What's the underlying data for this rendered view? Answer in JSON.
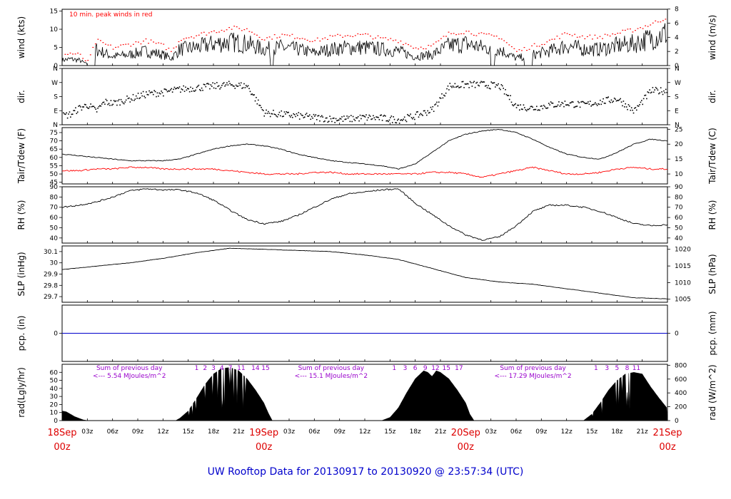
{
  "title": "UW Rooftop Data for 20130917  to  20130920 @ 23:57:34  (UTC)",
  "colors": {
    "frame": "#000000",
    "red": "#ff0000",
    "blue": "#0000cc",
    "purple": "#9900cc",
    "date": "#dd0000"
  },
  "x_axis": {
    "hours_total": 72,
    "hour_ticks": [
      "03z",
      "06z",
      "09z",
      "12z",
      "15z",
      "18z",
      "21z",
      "03z",
      "06z",
      "09z",
      "12z",
      "15z",
      "18z",
      "21z",
      "03z",
      "06z",
      "09z",
      "12z",
      "15z",
      "18z",
      "21z"
    ],
    "hour_tick_hours": [
      3,
      6,
      9,
      12,
      15,
      18,
      21,
      27,
      30,
      33,
      36,
      39,
      42,
      45,
      51,
      54,
      57,
      60,
      63,
      66,
      69
    ],
    "dates": [
      {
        "label": "18Sep",
        "sub": "00z",
        "hour": 0
      },
      {
        "label": "19Sep",
        "sub": "00z",
        "hour": 24
      },
      {
        "label": "20Sep",
        "sub": "00z",
        "hour": 48
      },
      {
        "label": "21Sep",
        "sub": "00z",
        "hour": 72
      }
    ]
  },
  "chart_data": [
    {
      "type": "line",
      "id": "wind",
      "ylabel": "wind (kts)",
      "ylabel_right": "wind (m/s)",
      "ylim": [
        0,
        15.5
      ],
      "yticks": [
        0,
        5,
        10,
        15
      ],
      "right_ticks": [
        "0",
        "2",
        "4",
        "6",
        "8"
      ],
      "right_tick_at": [
        0,
        3.89,
        7.78,
        11.66,
        15.55
      ],
      "annotation": "10 min. peak winds in red",
      "series": [
        {
          "x": [
            0,
            1,
            2,
            3,
            4,
            5,
            6,
            8,
            10,
            12,
            13,
            14,
            16,
            18,
            20,
            22,
            24,
            26,
            28,
            30,
            32,
            34,
            36,
            38,
            40,
            42,
            44,
            46,
            48,
            50,
            52,
            54,
            56,
            58,
            60,
            62,
            64,
            66,
            68,
            70,
            72
          ],
          "y": [
            1.5,
            1.8,
            1.5,
            0.4,
            4.5,
            3.5,
            2.5,
            3,
            4,
            3,
            2,
            4.5,
            5,
            6,
            6.5,
            6,
            4.5,
            5,
            4.5,
            3.5,
            4.5,
            5,
            5,
            4.5,
            4,
            2.5,
            3,
            5.5,
            6,
            5,
            4.5,
            2,
            3,
            4,
            5.5,
            4.5,
            4.5,
            5.5,
            6,
            7.5,
            9
          ]
        },
        {
          "x": [
            0,
            1,
            2,
            3,
            4,
            5,
            6,
            8,
            10,
            12,
            13,
            14,
            16,
            18,
            20,
            22,
            24,
            26,
            28,
            30,
            32,
            34,
            36,
            38,
            40,
            42,
            44,
            46,
            48,
            50,
            52,
            54,
            56,
            58,
            60,
            62,
            64,
            66,
            68,
            70,
            72
          ],
          "y": [
            3,
            3.5,
            3,
            1,
            7,
            6,
            5,
            6,
            7,
            5.5,
            4,
            7.5,
            8.5,
            9.5,
            10.5,
            10,
            7.5,
            8.5,
            8,
            7,
            8,
            8.5,
            8.5,
            7.5,
            7,
            5,
            5.5,
            9,
            9.5,
            8.5,
            8,
            4,
            5.5,
            7,
            9,
            8,
            8,
            9,
            10,
            11.5,
            13.5
          ]
        }
      ]
    },
    {
      "type": "scatter",
      "id": "direction",
      "ylabel": "dir.",
      "ylabel_right": "dir.",
      "ylim": [
        0,
        360
      ],
      "yticks": [
        "N",
        "E",
        "S",
        "W",
        "N"
      ],
      "ytick_values": [
        0,
        90,
        180,
        270,
        360
      ],
      "series": [
        {
          "x": [
            0,
            1,
            2,
            3,
            4,
            5,
            6,
            8,
            10,
            12,
            14,
            16,
            18,
            20,
            22,
            24,
            26,
            28,
            30,
            32,
            34,
            36,
            38,
            40,
            42,
            44,
            46,
            48,
            50,
            52,
            54,
            56,
            58,
            60,
            62,
            64,
            66,
            68,
            70,
            72
          ],
          "y": [
            60,
            70,
            110,
            130,
            90,
            150,
            140,
            170,
            200,
            210,
            230,
            240,
            250,
            260,
            250,
            80,
            70,
            60,
            50,
            40,
            40,
            50,
            45,
            35,
            60,
            100,
            250,
            260,
            260,
            250,
            120,
            110,
            130,
            140,
            130,
            150,
            170,
            90,
            220,
            220
          ]
        }
      ]
    },
    {
      "type": "line",
      "id": "temperature",
      "ylabel": "Tair/Tdew (F)",
      "ylabel_right": "Tair/Tdew (C)",
      "ylim": [
        44,
        78
      ],
      "yticks": [
        45,
        50,
        55,
        60,
        65,
        70,
        75
      ],
      "right_ticks": [
        "10",
        "15",
        "20",
        "25"
      ],
      "right_tick_at": [
        50,
        59,
        68,
        77
      ],
      "series": [
        {
          "x": [
            0,
            2,
            4,
            6,
            8,
            10,
            12,
            14,
            16,
            18,
            20,
            22,
            24,
            26,
            28,
            30,
            32,
            34,
            36,
            38,
            40,
            42,
            44,
            46,
            48,
            50,
            52,
            54,
            56,
            58,
            60,
            62,
            64,
            66,
            68,
            70,
            72
          ],
          "y": [
            62,
            61,
            60,
            59,
            58,
            58,
            58,
            59,
            62,
            65,
            67,
            68,
            67,
            65,
            62,
            60,
            58,
            57,
            56,
            55,
            53,
            56,
            63,
            70,
            74,
            76,
            77,
            75,
            71,
            66,
            62,
            60,
            59,
            63,
            68,
            71,
            70
          ]
        },
        {
          "x": [
            0,
            2,
            4,
            6,
            8,
            10,
            12,
            14,
            16,
            18,
            20,
            22,
            24,
            26,
            28,
            30,
            32,
            34,
            36,
            38,
            40,
            42,
            44,
            46,
            48,
            50,
            52,
            54,
            56,
            58,
            60,
            62,
            64,
            66,
            68,
            70,
            72
          ],
          "y": [
            52,
            52,
            53,
            53,
            54,
            54,
            53,
            53,
            53,
            53,
            52,
            51,
            50,
            50,
            50,
            51,
            51,
            50,
            50,
            50,
            50,
            50,
            51,
            51,
            50,
            48,
            50,
            52,
            54,
            52,
            50,
            50,
            51,
            53,
            54,
            53,
            53
          ]
        }
      ]
    },
    {
      "type": "line",
      "id": "rh",
      "ylabel": "RH (%)",
      "ylabel_right": "RH (%)",
      "ylim": [
        35,
        90
      ],
      "yticks": [
        40,
        50,
        60,
        70,
        80,
        90
      ],
      "right_ticks": [
        "40",
        "50",
        "60",
        "70",
        "80",
        "90"
      ],
      "right_tick_at": [
        40,
        50,
        60,
        70,
        80,
        90
      ],
      "series": [
        {
          "x": [
            0,
            2,
            4,
            6,
            8,
            10,
            12,
            14,
            16,
            18,
            20,
            22,
            24,
            26,
            28,
            30,
            32,
            34,
            36,
            38,
            40,
            42,
            44,
            46,
            48,
            50,
            52,
            54,
            56,
            58,
            60,
            62,
            64,
            66,
            68,
            70,
            72
          ],
          "y": [
            70,
            72,
            75,
            80,
            86,
            88,
            87,
            87,
            84,
            77,
            67,
            58,
            54,
            56,
            62,
            70,
            78,
            83,
            85,
            87,
            88,
            74,
            63,
            52,
            43,
            38,
            41,
            52,
            66,
            72,
            72,
            70,
            66,
            60,
            54,
            52,
            53
          ]
        }
      ]
    },
    {
      "type": "line",
      "id": "pressure",
      "ylabel": "SLP (inHg)",
      "ylabel_right": "SLP (hPa)",
      "ylim": [
        29.65,
        30.15
      ],
      "yticks": [
        29.7,
        29.8,
        29.9,
        30.0,
        30.1
      ],
      "right_ticks": [
        "1005",
        "1010",
        "1015",
        "1020"
      ],
      "right_tick_at": [
        29.677,
        29.824,
        29.972,
        30.12
      ],
      "series": [
        {
          "x": [
            0,
            4,
            8,
            12,
            16,
            20,
            24,
            28,
            32,
            36,
            40,
            44,
            48,
            52,
            56,
            60,
            64,
            68,
            72
          ],
          "y": [
            29.94,
            29.97,
            30.0,
            30.04,
            30.09,
            30.13,
            30.12,
            30.11,
            30.1,
            30.07,
            30.03,
            29.95,
            29.87,
            29.83,
            29.81,
            29.77,
            29.73,
            29.69,
            29.68
          ]
        }
      ]
    },
    {
      "type": "line",
      "id": "precip",
      "ylabel": "pcp. (in)",
      "ylabel_right": "pcp. (mm)",
      "ylim": [
        -0.5,
        0.5
      ],
      "yticks": [
        0
      ],
      "right_ticks": [
        "0"
      ],
      "right_tick_at": [
        0
      ],
      "series": [
        {
          "x": [
            0,
            72
          ],
          "y": [
            0,
            0
          ]
        }
      ]
    },
    {
      "type": "area",
      "id": "radiation",
      "ylabel": "rad(Lgly/hr)",
      "ylabel_right": "rad (W/m^2)",
      "ylim": [
        0,
        70
      ],
      "yticks": [
        0,
        10,
        20,
        30,
        40,
        50,
        60
      ],
      "right_ticks": [
        "0",
        "200",
        "400",
        "600",
        "800"
      ],
      "right_tick_at": [
        0,
        17.2,
        34.4,
        51.6,
        68.8
      ],
      "daily_labels": [
        {
          "line1": "Sum of previous day",
          "line2": "<--- 5.54 MJoules/m^2",
          "hour": 8
        },
        {
          "line1": "Sum of previous day",
          "line2": "<--- 15.1 MJoules/m^2",
          "hour": 32
        },
        {
          "line1": "Sum of previous day",
          "line2": "<--- 17.29 MJoules/m^2",
          "hour": 56
        }
      ],
      "hour_markers": [
        {
          "label": "1",
          "hour": 16
        },
        {
          "label": "2",
          "hour": 17
        },
        {
          "label": "3",
          "hour": 18
        },
        {
          "label": "4",
          "hour": 19
        },
        {
          "label": "7",
          "hour": 20
        },
        {
          "label": "11",
          "hour": 21.3
        },
        {
          "label": "14",
          "hour": 23
        },
        {
          "label": "15",
          "hour": 24.2
        },
        {
          "label": "1",
          "hour": 39.5
        },
        {
          "label": "3",
          "hour": 40.8
        },
        {
          "label": "6",
          "hour": 42
        },
        {
          "label": "9",
          "hour": 43.2
        },
        {
          "label": "12",
          "hour": 44.4
        },
        {
          "label": "15",
          "hour": 45.7
        },
        {
          "label": "17",
          "hour": 47.2
        },
        {
          "label": "1",
          "hour": 63.5
        },
        {
          "label": "3",
          "hour": 64.8
        },
        {
          "label": "5",
          "hour": 66
        },
        {
          "label": "8",
          "hour": 67.2
        },
        {
          "label": "11",
          "hour": 68.3
        }
      ],
      "series": [
        {
          "x": [
            0,
            0.5,
            1,
            1.5,
            2,
            2.5,
            3,
            13.5,
            14,
            15,
            16,
            17,
            18,
            19,
            20,
            21,
            22,
            23,
            24,
            24.5,
            25,
            38,
            39,
            40,
            41,
            42,
            43,
            43.5,
            44,
            44.5,
            45,
            46,
            47,
            48,
            48.5,
            49,
            62,
            63,
            64,
            65,
            66,
            67,
            68,
            69,
            70,
            71,
            72
          ],
          "y": [
            12,
            11,
            8,
            5,
            3,
            1,
            0,
            0,
            3,
            12,
            28,
            45,
            58,
            65,
            66,
            62,
            52,
            38,
            22,
            10,
            0,
            0,
            4,
            16,
            35,
            52,
            62,
            60,
            55,
            62,
            60,
            52,
            38,
            22,
            8,
            0,
            0,
            8,
            22,
            38,
            50,
            58,
            60,
            58,
            42,
            28,
            15
          ]
        }
      ]
    }
  ]
}
